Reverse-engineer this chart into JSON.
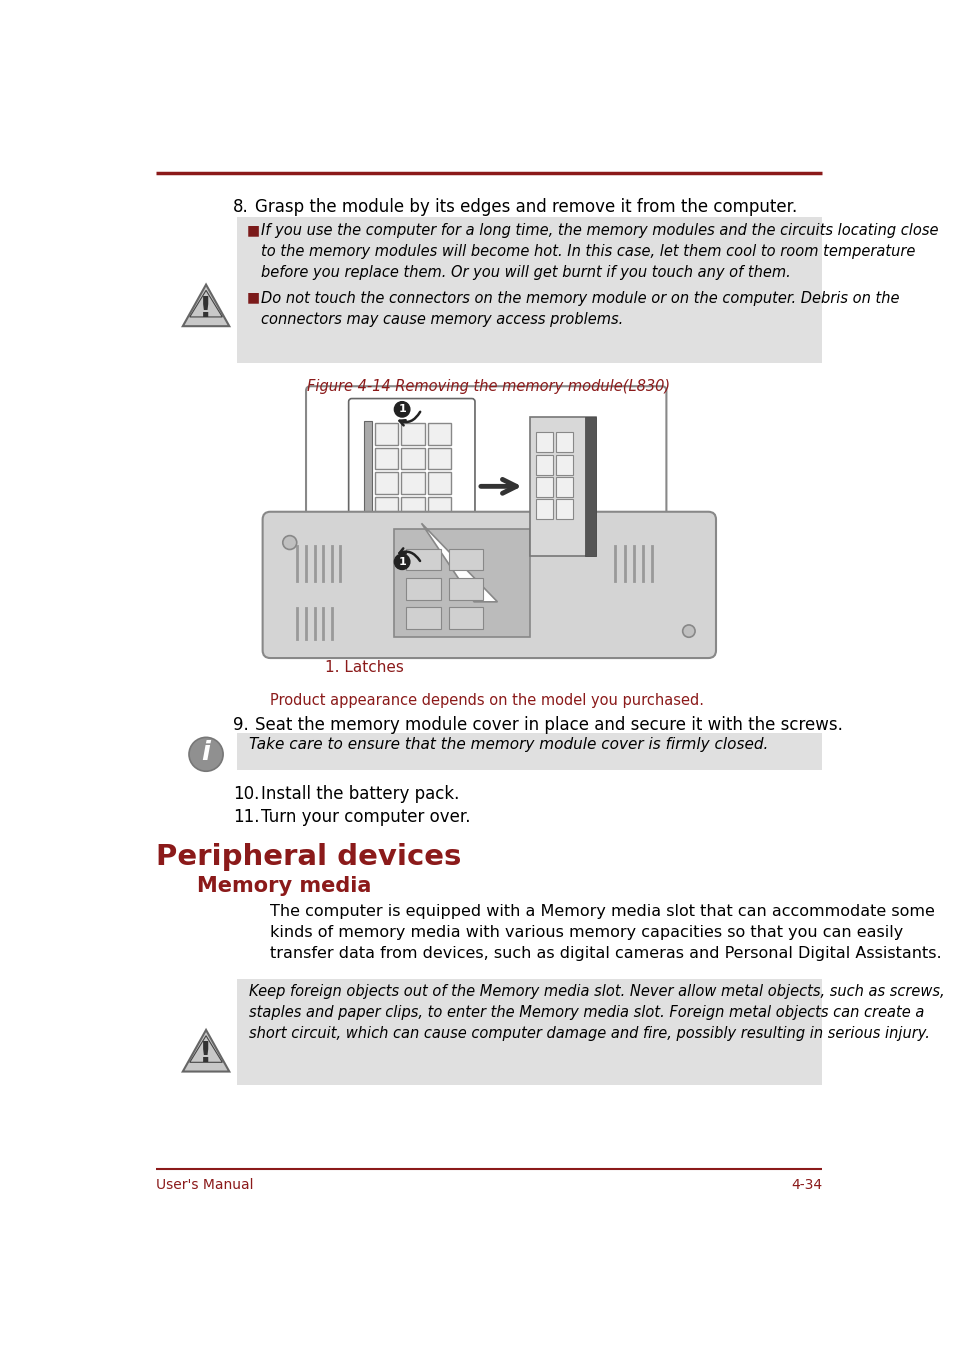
{
  "bg_color": "#ffffff",
  "line_color": "#8B1A1A",
  "step8_text": "8.   Grasp the module by its edges and remove it from the computer.",
  "warn_bg": "#E0E0E0",
  "bullet_color": "#7B1A1A",
  "warn1a": "If you use the computer for a long time, the memory modules and the circuits locating close to the memory modules will become hot. In this case, let them cool to room temperature before you replace them. Or you will get burnt if you touch any of them.",
  "warn1b": "Do not touch the connectors on the memory module or on the computer. Debris on the connectors may cause memory access problems.",
  "fig_caption": "Figure 4-14 Removing the memory module(L830)",
  "fig_color": "#8B1A1A",
  "latches": "1. Latches",
  "latches_color": "#8B1A1A",
  "product_note": "Product appearance depends on the model you purchased.",
  "product_color": "#8B1A1A",
  "step9": "9.   Seat the memory module cover in place and secure it with the screws.",
  "info_text": "Take care to ensure that the memory module cover is firmly closed.",
  "step10": "10.  Install the battery pack.",
  "step11": "11.  Turn your computer over.",
  "sec_title": "Peripheral devices",
  "sec_color": "#8B1A1A",
  "sub_title": "Memory media",
  "sub_color": "#8B1A1A",
  "body": "The computer is equipped with a Memory media slot that can accommodate some kinds of memory media with various memory capacities so that you can easily transfer data from devices, such as digital cameras and Personal Digital Assistants.",
  "warn2": "Keep foreign objects out of the Memory media slot. Never allow metal objects, such as screws, staples and paper clips, to enter the Memory media slot. Foreign metal objects can create a short circuit, which can cause computer damage and fire, possibly resulting in serious injury.",
  "footer_l": "User's Manual",
  "footer_r": "4-34",
  "footer_color": "#8B1A1A"
}
